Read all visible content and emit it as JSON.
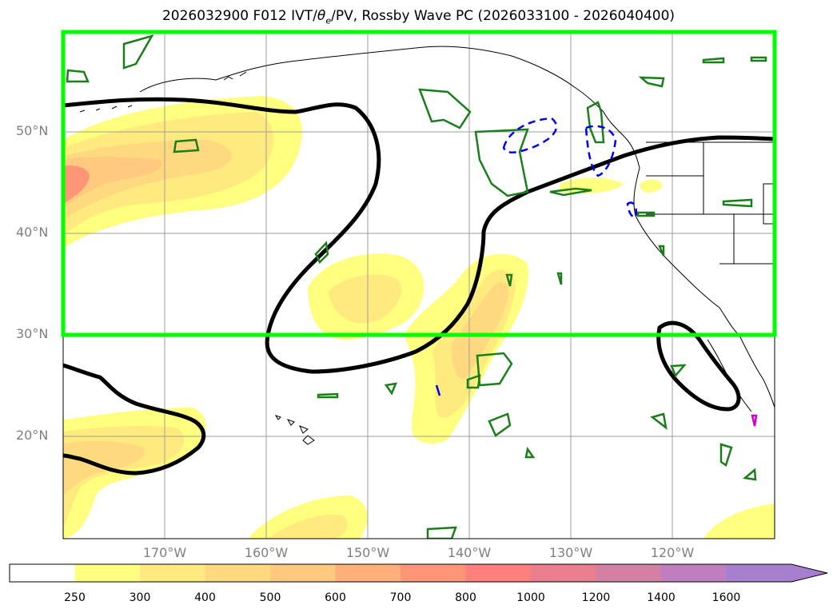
{
  "title": {
    "prefix": "2026032900 F012 IVT/",
    "theta_symbol": "θ",
    "theta_sub": "e",
    "suffix": "/PV, Rossby Wave PC (2026033100 - 2026040400)"
  },
  "map": {
    "lon_range": [
      -180,
      -110
    ],
    "lat_range": [
      10,
      60
    ],
    "lat_ticks": [
      {
        "value": 50,
        "label": "50°N"
      },
      {
        "value": 40,
        "label": "40°N"
      },
      {
        "value": 30,
        "label": "30°N"
      },
      {
        "value": 20,
        "label": "20°N"
      }
    ],
    "lon_ticks": [
      {
        "value": -170,
        "label": "170°W"
      },
      {
        "value": -160,
        "label": "160°W"
      },
      {
        "value": -150,
        "label": "150°W"
      },
      {
        "value": -140,
        "label": "140°W"
      },
      {
        "value": -130,
        "label": "130°W"
      },
      {
        "value": -120,
        "label": "120°W"
      }
    ],
    "grid": true,
    "highlight_box": {
      "lon": [
        -180,
        -110
      ],
      "lat": [
        30,
        60
      ],
      "color": "#00ff00"
    },
    "colors": {
      "land_border": "#000000",
      "pv_contour": "#000000",
      "positive_contour": "#1a7f1a",
      "negative_contour": "#0000ee",
      "magenta_feature": "#cc00cc"
    }
  },
  "colorbar": {
    "bounds": [
      "250",
      "300",
      "400",
      "500",
      "600",
      "700",
      "800",
      "1000",
      "1200",
      "1400",
      "1600"
    ],
    "colors": [
      "#ffff7f",
      "#ffea7f",
      "#ffd97f",
      "#ffc97f",
      "#ffb07a",
      "#ff9577",
      "#ff7f7f",
      "#ea7f8f",
      "#d47fa4",
      "#bf7fbf",
      "#a77fcf"
    ],
    "extend": "max"
  }
}
